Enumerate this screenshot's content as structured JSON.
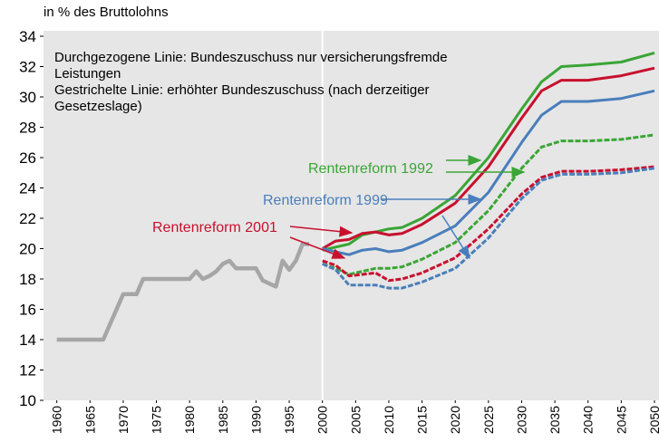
{
  "chart_data": {
    "type": "line",
    "ylabel": "in % des Bruttolohns",
    "note": [
      "Durchgezogene Linie: Bundeszuschuss nur versicherungsfremde",
      "Leistungen",
      "Gestrichelte Linie: erhöhter Bundeszuschuss (nach derzeitiger",
      "Gesetzeslage)"
    ],
    "xlim": [
      1958,
      2050
    ],
    "ylim": [
      10,
      34
    ],
    "xticks": [
      1960,
      1965,
      1970,
      1975,
      1980,
      1985,
      1990,
      1995,
      2000,
      2005,
      2010,
      2015,
      2020,
      2025,
      2030,
      2035,
      2040,
      2045,
      2050
    ],
    "yticks": [
      10,
      12,
      14,
      16,
      18,
      20,
      22,
      24,
      26,
      28,
      30,
      32,
      34
    ],
    "series": [
      {
        "color": "#a6a6a6",
        "dashed": false,
        "x": [
          1960,
          1967,
          1970,
          1972,
          1973,
          1980,
          1981,
          1982,
          1983,
          1984,
          1985,
          1986,
          1987,
          1990,
          1991,
          1993,
          1994,
          1995,
          1996,
          1997,
          1998
        ],
        "values": [
          14,
          14,
          17,
          17,
          18,
          18,
          18.5,
          18,
          18.2,
          18.5,
          19,
          19.2,
          18.7,
          18.7,
          17.9,
          17.5,
          19.2,
          18.6,
          19.2,
          20.3,
          20.3
        ]
      },
      {
        "color": "#3aa535",
        "dashed": false,
        "x": [
          2000,
          2002,
          2004,
          2006,
          2008,
          2010,
          2012,
          2015,
          2020,
          2025,
          2030,
          2033,
          2036,
          2040,
          2045,
          2050
        ],
        "values": [
          19.9,
          20.1,
          20.3,
          20.9,
          21.1,
          21.3,
          21.4,
          22.0,
          23.5,
          26.0,
          29.2,
          31.0,
          32.0,
          32.1,
          32.3,
          32.9
        ]
      },
      {
        "color": "#c8102e",
        "dashed": false,
        "x": [
          2000,
          2002,
          2004,
          2006,
          2008,
          2010,
          2012,
          2015,
          2020,
          2025,
          2030,
          2033,
          2036,
          2040,
          2045,
          2050
        ],
        "values": [
          20.0,
          20.5,
          20.6,
          21.0,
          21.1,
          20.9,
          21.0,
          21.6,
          23.0,
          25.4,
          28.6,
          30.4,
          31.1,
          31.1,
          31.4,
          31.9
        ]
      },
      {
        "color": "#4a7ebb",
        "dashed": false,
        "x": [
          2000,
          2002,
          2004,
          2006,
          2008,
          2010,
          2012,
          2015,
          2020,
          2025,
          2030,
          2033,
          2036,
          2040,
          2045,
          2050
        ],
        "values": [
          20.0,
          19.8,
          19.6,
          19.9,
          20.0,
          19.8,
          19.9,
          20.4,
          21.5,
          23.7,
          27.0,
          28.8,
          29.7,
          29.7,
          29.9,
          30.4
        ]
      },
      {
        "color": "#3aa535",
        "dashed": true,
        "x": [
          2000,
          2002,
          2004,
          2006,
          2008,
          2010,
          2012,
          2015,
          2020,
          2025,
          2030,
          2033,
          2036,
          2040,
          2045,
          2050
        ],
        "values": [
          19.0,
          18.7,
          18.3,
          18.5,
          18.7,
          18.7,
          18.8,
          19.3,
          20.4,
          22.5,
          25.3,
          26.7,
          27.1,
          27.1,
          27.2,
          27.5
        ]
      },
      {
        "color": "#c8102e",
        "dashed": true,
        "x": [
          2000,
          2002,
          2004,
          2006,
          2008,
          2010,
          2012,
          2015,
          2020,
          2025,
          2030,
          2033,
          2036,
          2040,
          2045,
          2050
        ],
        "values": [
          19.2,
          18.9,
          18.2,
          18.3,
          18.4,
          17.9,
          18.0,
          18.4,
          19.4,
          21.3,
          23.6,
          24.7,
          25.1,
          25.1,
          25.2,
          25.4
        ]
      },
      {
        "color": "#4a7ebb",
        "dashed": true,
        "x": [
          2000,
          2002,
          2004,
          2006,
          2008,
          2010,
          2012,
          2015,
          2020,
          2025,
          2030,
          2033,
          2036,
          2040,
          2045,
          2050
        ],
        "values": [
          19.0,
          18.6,
          17.6,
          17.6,
          17.6,
          17.4,
          17.4,
          17.8,
          18.7,
          20.7,
          23.3,
          24.5,
          24.9,
          24.9,
          25.0,
          25.3
        ]
      }
    ],
    "annotations": [
      {
        "text": "Rentenreform 1992",
        "color": "#3aa535"
      },
      {
        "text": "Rentenreform 1999",
        "color": "#4a7ebb"
      },
      {
        "text": "Rentenreform 2001",
        "color": "#c8102e"
      }
    ]
  }
}
